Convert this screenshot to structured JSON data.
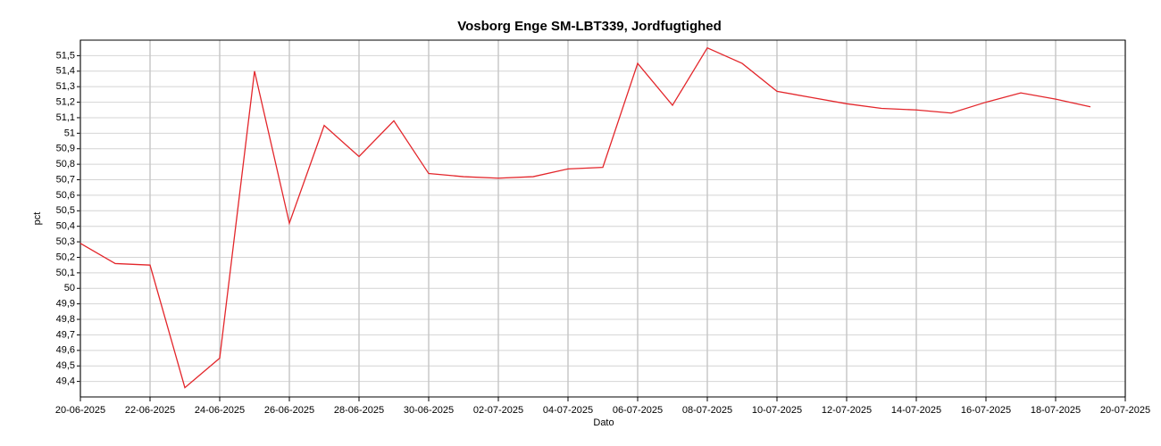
{
  "chart_data": {
    "type": "line",
    "title": "Vosborg Enge SM-LBT339, Jordfugtighed",
    "x_label": "Dato",
    "y_label": "pct",
    "color": "#e3262b",
    "grid": true,
    "x": [
      "20-06-2025",
      "21-06-2025",
      "22-06-2025",
      "23-06-2025",
      "24-06-2025",
      "25-06-2025",
      "26-06-2025",
      "27-06-2025",
      "28-06-2025",
      "29-06-2025",
      "30-06-2025",
      "01-07-2025",
      "02-07-2025",
      "03-07-2025",
      "04-07-2025",
      "05-07-2025",
      "06-07-2025",
      "07-07-2025",
      "08-07-2025",
      "09-07-2025",
      "10-07-2025",
      "11-07-2025",
      "12-07-2025",
      "13-07-2025",
      "14-07-2025",
      "15-07-2025",
      "16-07-2025",
      "17-07-2025",
      "18-07-2025",
      "19-07-2025"
    ],
    "values": [
      50.29,
      50.16,
      50.15,
      49.36,
      49.55,
      51.4,
      50.42,
      51.05,
      50.85,
      51.08,
      50.74,
      50.72,
      50.71,
      50.72,
      50.77,
      50.78,
      51.45,
      51.18,
      51.55,
      51.45,
      51.27,
      51.23,
      51.19,
      51.16,
      51.15,
      51.13,
      51.2,
      51.26,
      51.22,
      51.17
    ],
    "xlim": [
      "20-06-2025",
      "20-07-2025"
    ],
    "xticks": [
      "20-06-2025",
      "22-06-2025",
      "24-06-2025",
      "26-06-2025",
      "28-06-2025",
      "30-06-2025",
      "02-07-2025",
      "04-07-2025",
      "06-07-2025",
      "08-07-2025",
      "10-07-2025",
      "12-07-2025",
      "14-07-2025",
      "16-07-2025",
      "18-07-2025",
      "20-07-2025"
    ],
    "ylim": [
      49.3,
      51.6
    ],
    "yticks": [
      {
        "value": 49.4,
        "label": "49,4"
      },
      {
        "value": 49.5,
        "label": "49,5"
      },
      {
        "value": 49.6,
        "label": "49,6"
      },
      {
        "value": 49.7,
        "label": "49,7"
      },
      {
        "value": 49.8,
        "label": "49,8"
      },
      {
        "value": 49.9,
        "label": "49,9"
      },
      50,
      {
        "value": 50.1,
        "label": "50,1"
      },
      {
        "value": 50.2,
        "label": "50,2"
      },
      {
        "value": 50.3,
        "label": "50,3"
      },
      {
        "value": 50.4,
        "label": "50,4"
      },
      {
        "value": 50.5,
        "label": "50,5"
      },
      {
        "value": 50.6,
        "label": "50,6"
      },
      {
        "value": 50.7,
        "label": "50,7"
      },
      {
        "value": 50.8,
        "label": "50,8"
      },
      {
        "value": 50.9,
        "label": "50,9"
      },
      51,
      {
        "value": 51.1,
        "label": "51,1"
      },
      {
        "value": 51.2,
        "label": "51,2"
      },
      {
        "value": 51.3,
        "label": "51,3"
      },
      {
        "value": 51.4,
        "label": "51,4"
      },
      {
        "value": 51.5,
        "label": "51,5"
      }
    ]
  }
}
